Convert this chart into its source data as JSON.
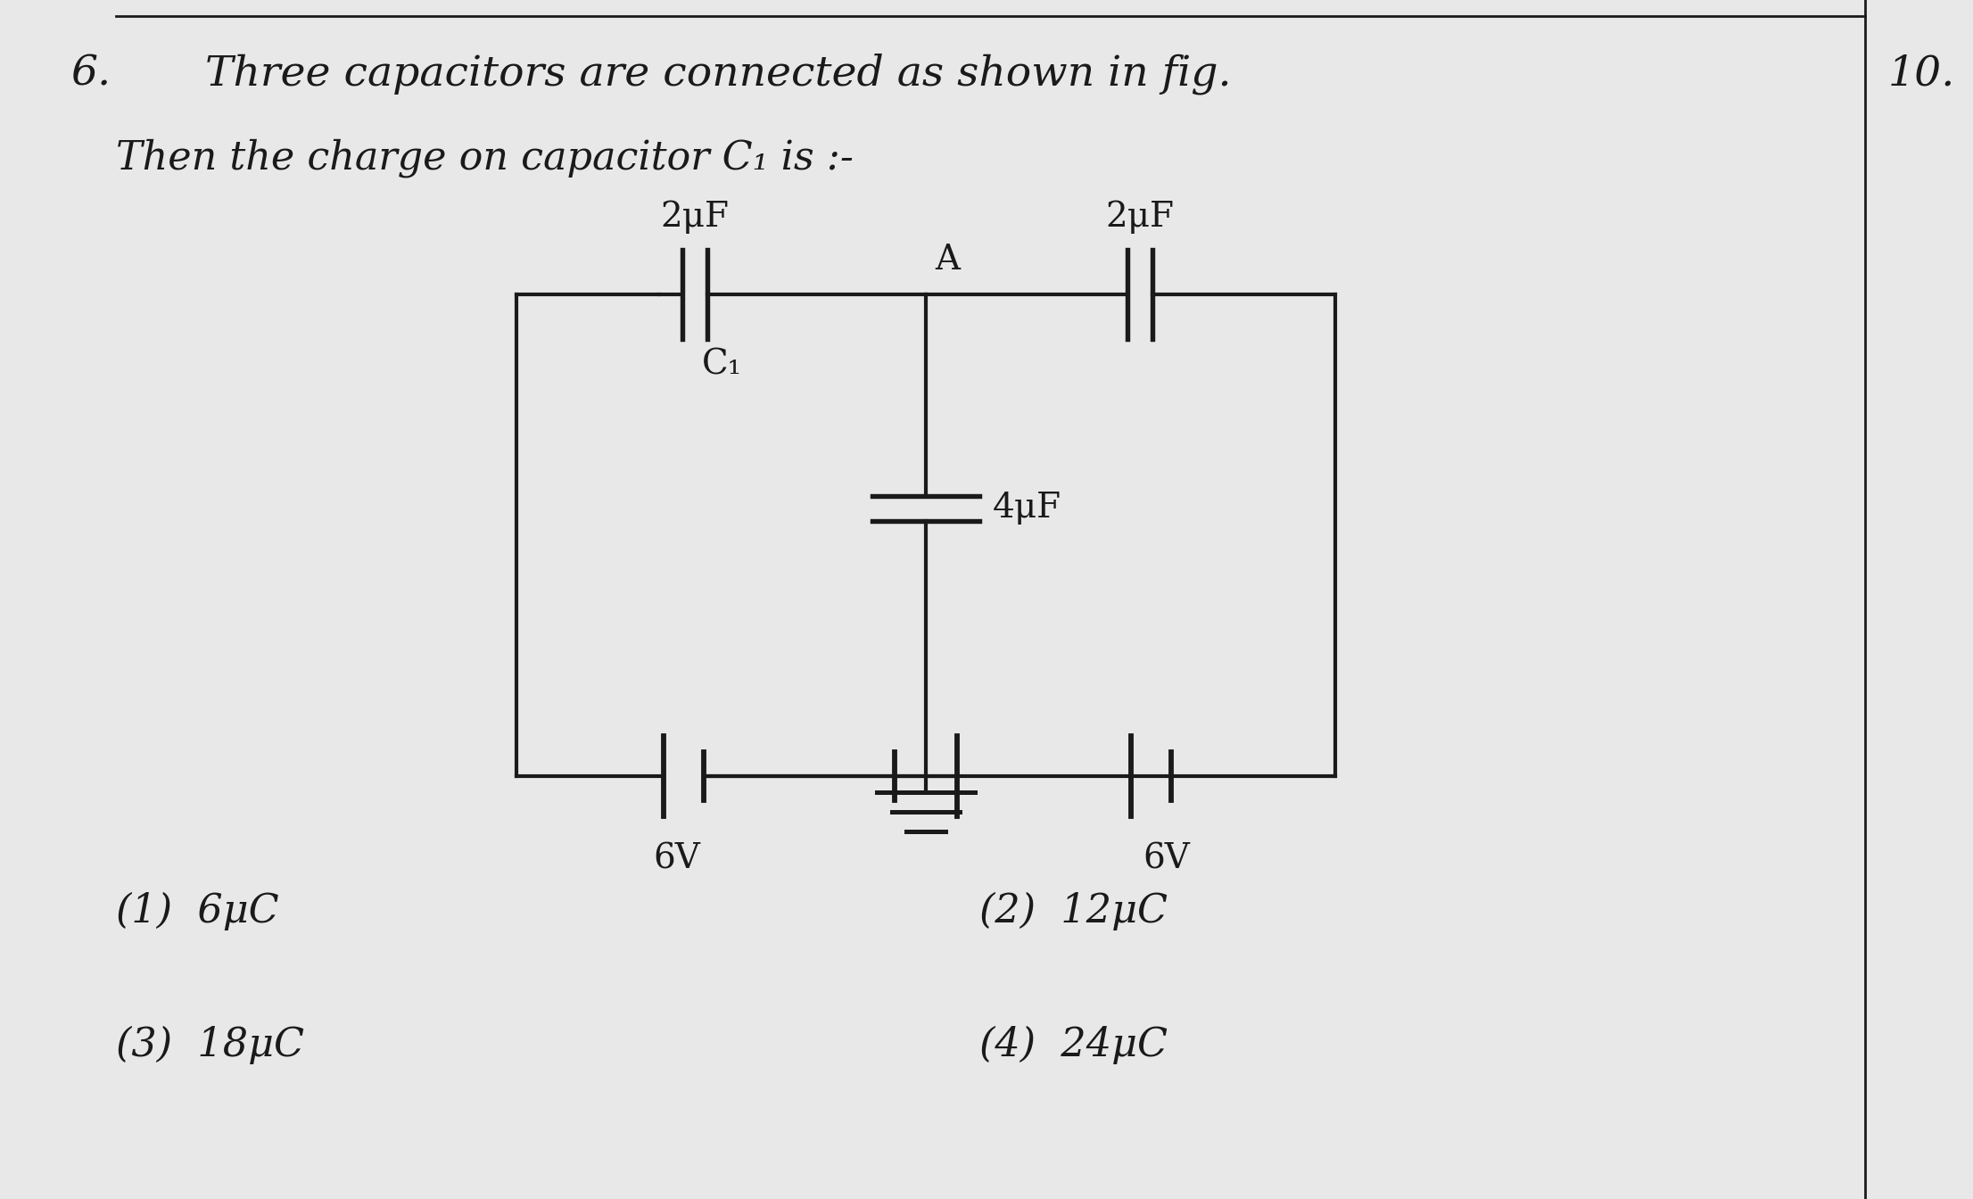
{
  "background_color": "#e8e8e8",
  "title_number": "6.",
  "title_text": "Three capacitors are connected as shown in fig.",
  "right_number": "10.",
  "subtitle": "Then the charge on capacitor C₁ is :-",
  "cap_labels": {
    "C1": "2μF",
    "C1_sub": "C₁",
    "C2": "2μF",
    "C3": "4μF",
    "A": "A"
  },
  "volt_left": "6V",
  "volt_right": "6V",
  "options": [
    "(1)  6μC",
    "(2)  12μC",
    "(3)  18μC",
    "(4)  24μC"
  ],
  "text_color": "#1a1a1a",
  "line_color": "#1a1a1a",
  "fs_title": 34,
  "fs_subtitle": 32,
  "fs_options": 32,
  "fs_circuit": 28,
  "lw": 3.0
}
